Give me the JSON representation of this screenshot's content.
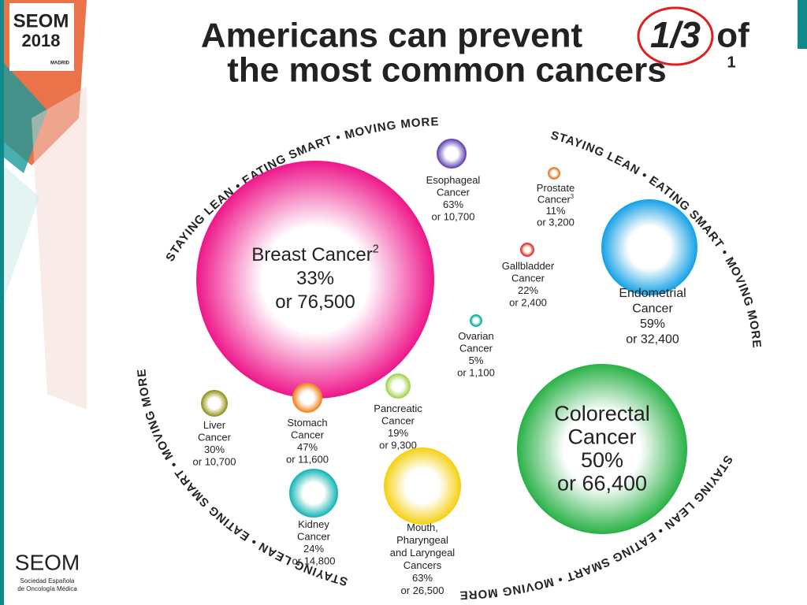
{
  "logo": {
    "name": "SEOM",
    "year": "2018",
    "city": "MADRID"
  },
  "footer_logo": {
    "name": "SEOM",
    "line1": "Sociedad Española",
    "line2": "de Oncología Médica"
  },
  "title": {
    "line1": "Americans can prevent",
    "fraction": "1/3",
    "line1_end": "of",
    "line2": "the most common cancers",
    "footnote": "1"
  },
  "ring_text": "STAYING LEAN • EATING SMART • MOVING MORE",
  "cancers": [
    {
      "name_lines": [
        "Esophageal",
        "Cancer"
      ],
      "percent": "63%",
      "count": "or 10,700",
      "color": "#6a4fb3"
    },
    {
      "name_lines": [
        "Prostate",
        "Cancer"
      ],
      "sup": "3",
      "percent": "11%",
      "count": "or 3,200",
      "color": "#e08a3c"
    },
    {
      "name_lines": [
        "Breast Cancer"
      ],
      "sup": "2",
      "percent": "33%",
      "count": "or 76,500",
      "color": "#ee1a8c"
    },
    {
      "name_lines": [
        "Gallbladder",
        "Cancer"
      ],
      "percent": "22%",
      "count": "or 2,400",
      "color": "#e0443a"
    },
    {
      "name_lines": [
        "Endometrial",
        "Cancer"
      ],
      "percent": "59%",
      "count": "or 32,400",
      "color": "#1aa3e6"
    },
    {
      "name_lines": [
        "Ovarian",
        "Cancer"
      ],
      "percent": "5%",
      "count": "or 1,100",
      "color": "#1fb3a6"
    },
    {
      "name_lines": [
        "Colorectal",
        "Cancer"
      ],
      "percent": "50%",
      "count": "or 66,400",
      "color": "#2db34a"
    },
    {
      "name_lines": [
        "Liver",
        "Cancer"
      ],
      "percent": "30%",
      "count": "or 10,700",
      "color": "#9a9a2a"
    },
    {
      "name_lines": [
        "Stomach",
        "Cancer"
      ],
      "percent": "47%",
      "count": "or 11,600",
      "color": "#f08a2a"
    },
    {
      "name_lines": [
        "Pancreatic",
        "Cancer"
      ],
      "percent": "19%",
      "count": "or 9,300",
      "color": "#a8d65a"
    },
    {
      "name_lines": [
        "Kidney",
        "Cancer"
      ],
      "percent": "24%",
      "count": "or 14,800",
      "color": "#1fb8b8"
    },
    {
      "name_lines": [
        "Mouth,",
        "Pharyngeal",
        "and Laryngeal",
        "Cancers"
      ],
      "percent": "63%",
      "count": "or 26,500",
      "color": "#f5d21a"
    }
  ]
}
